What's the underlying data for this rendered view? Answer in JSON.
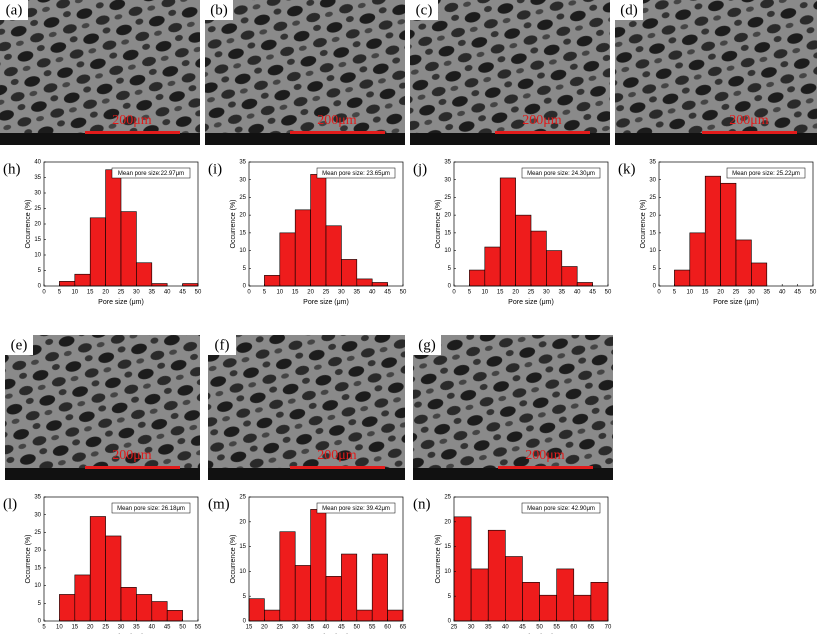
{
  "images": [
    {
      "label": "(a)",
      "scale": "200μm"
    },
    {
      "label": "(b)",
      "scale": "200μm"
    },
    {
      "label": "(c)",
      "scale": "200μm"
    },
    {
      "label": "(d)",
      "scale": "200μm"
    },
    {
      "label": "(e)",
      "scale": "200μm"
    },
    {
      "label": "(f)",
      "scale": "200μm"
    },
    {
      "label": "(g)",
      "scale": "200μm"
    }
  ],
  "chart_data": [
    {
      "type": "histogram",
      "label": "(h)",
      "annotation": "Mean pore size:22.97μm",
      "xlabel": "Pore size (μm)",
      "ylabel": "Occurrence (%)",
      "color": "#ee1c1c",
      "bins": [
        5,
        10,
        15,
        20,
        25,
        30,
        35,
        40,
        45,
        50
      ],
      "values": [
        1.5,
        3.8,
        22,
        37.5,
        24,
        7.5,
        0.8,
        0,
        0.8
      ],
      "xlim": [
        0,
        50
      ],
      "xticks": [
        0,
        5,
        10,
        15,
        20,
        25,
        30,
        35,
        40,
        45,
        50
      ],
      "ylim": [
        0,
        40
      ],
      "yticks": [
        0,
        5,
        10,
        15,
        20,
        25,
        30,
        35,
        40
      ]
    },
    {
      "type": "histogram",
      "label": "(i)",
      "annotation": "Mean pore size: 23.65μm",
      "xlabel": "Pore size (μm)",
      "ylabel": "Occurrence (%)",
      "color": "#ee1c1c",
      "bins": [
        5,
        10,
        15,
        20,
        25,
        30,
        35,
        40,
        45
      ],
      "values": [
        3,
        15,
        21.5,
        31.5,
        17,
        7.5,
        2,
        1
      ],
      "xlim": [
        0,
        50
      ],
      "xticks": [
        0,
        5,
        10,
        15,
        20,
        25,
        30,
        35,
        40,
        45,
        50
      ],
      "ylim": [
        0,
        35
      ],
      "yticks": [
        0,
        5,
        10,
        15,
        20,
        25,
        30,
        35
      ]
    },
    {
      "type": "histogram",
      "label": "(j)",
      "annotation": "Mean pore size: 24.30μm",
      "xlabel": "Pore size (μm)",
      "ylabel": "Occurrence (%)",
      "color": "#ee1c1c",
      "bins": [
        5,
        10,
        15,
        20,
        25,
        30,
        35,
        40,
        45
      ],
      "values": [
        4.5,
        11,
        30.5,
        20,
        15.5,
        10,
        5.5,
        1
      ],
      "xlim": [
        0,
        50
      ],
      "xticks": [
        0,
        5,
        10,
        15,
        20,
        25,
        30,
        35,
        40,
        45,
        50
      ],
      "ylim": [
        0,
        35
      ],
      "yticks": [
        0,
        5,
        10,
        15,
        20,
        25,
        30,
        35
      ]
    },
    {
      "type": "histogram",
      "label": "(k)",
      "annotation": "Mean pore size: 25.22μm",
      "xlabel": "Pore size (μm)",
      "ylabel": "Occurrence (%)",
      "color": "#ee1c1c",
      "bins": [
        5,
        10,
        15,
        20,
        25,
        30,
        35
      ],
      "values": [
        4.5,
        15,
        31,
        29,
        13,
        6.5
      ],
      "xlim": [
        0,
        50
      ],
      "xticks": [
        0,
        5,
        10,
        15,
        20,
        25,
        30,
        35,
        40,
        45,
        50
      ],
      "ylim": [
        0,
        35
      ],
      "yticks": [
        0,
        5,
        10,
        15,
        20,
        25,
        30,
        35
      ]
    },
    {
      "type": "histogram",
      "label": "(l)",
      "annotation": "Mean pore size: 26.18μm",
      "xlabel": "Pore size (μm)",
      "ylabel": "Occurrence (%)",
      "color": "#ee1c1c",
      "bins": [
        10,
        15,
        20,
        25,
        30,
        35,
        40,
        45,
        50
      ],
      "values": [
        7.5,
        13,
        29.5,
        24,
        9.5,
        7.5,
        5.5,
        3
      ],
      "xlim": [
        5,
        55
      ],
      "xticks": [
        5,
        10,
        15,
        20,
        25,
        30,
        35,
        40,
        45,
        50,
        55
      ],
      "ylim": [
        0,
        35
      ],
      "yticks": [
        0,
        5,
        10,
        15,
        20,
        25,
        30,
        35
      ]
    },
    {
      "type": "histogram",
      "label": "(m)",
      "annotation": "Mean pore size: 39.42μm",
      "xlabel": "Pore size (μm)",
      "ylabel": "Occurrence (%)",
      "color": "#ee1c1c",
      "bins": [
        15,
        20,
        25,
        30,
        35,
        40,
        45,
        50,
        55,
        60,
        65
      ],
      "values": [
        4.5,
        2.2,
        18,
        11.2,
        22.5,
        9,
        13.5,
        2.2,
        13.5,
        2.2
      ],
      "xlim": [
        15,
        65
      ],
      "xticks": [
        15,
        20,
        25,
        30,
        35,
        40,
        45,
        50,
        55,
        60,
        65
      ],
      "ylim": [
        0,
        25
      ],
      "yticks": [
        0,
        5,
        10,
        15,
        20,
        25
      ]
    },
    {
      "type": "histogram",
      "label": "(n)",
      "annotation": "Mean pore size: 42.90μm",
      "xlabel": "Pore size (μm)",
      "ylabel": "Occurrence (%)",
      "color": "#ee1c1c",
      "bins": [
        25,
        30,
        35,
        40,
        45,
        50,
        55,
        60,
        65,
        70
      ],
      "values": [
        21,
        10.5,
        18.3,
        13,
        7.8,
        5.2,
        10.5,
        5.2,
        7.8
      ],
      "xlim": [
        25,
        70
      ],
      "xticks": [
        25,
        30,
        35,
        40,
        45,
        50,
        55,
        60,
        65,
        70
      ],
      "ylim": [
        0,
        25
      ],
      "yticks": [
        0,
        5,
        10,
        15,
        20,
        25
      ]
    }
  ]
}
